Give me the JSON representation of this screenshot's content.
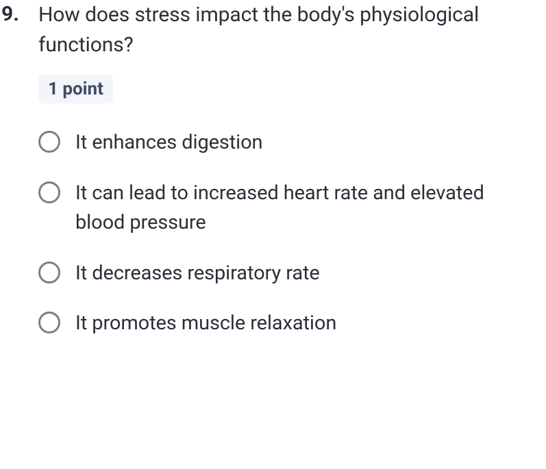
{
  "question": {
    "number": "9.",
    "text": "How does stress impact the body's physiological functions?",
    "points_label": "1 point",
    "options": [
      {
        "label": "It enhances digestion"
      },
      {
        "label": "It can lead to increased heart rate and elevated blood pressure"
      },
      {
        "label": "It decreases respiratory rate"
      },
      {
        "label": "It promotes muscle relaxation"
      }
    ]
  },
  "styling": {
    "text_color": "#2a2f3a",
    "badge_bg": "#f2f5f9",
    "badge_text": "#3f4b62",
    "radio_border": "#7a7f89",
    "background": "#ffffff",
    "question_fontsize": 30,
    "option_fontsize": 29,
    "badge_fontsize": 26,
    "number_fontweight": 700,
    "badge_fontweight": 700
  }
}
